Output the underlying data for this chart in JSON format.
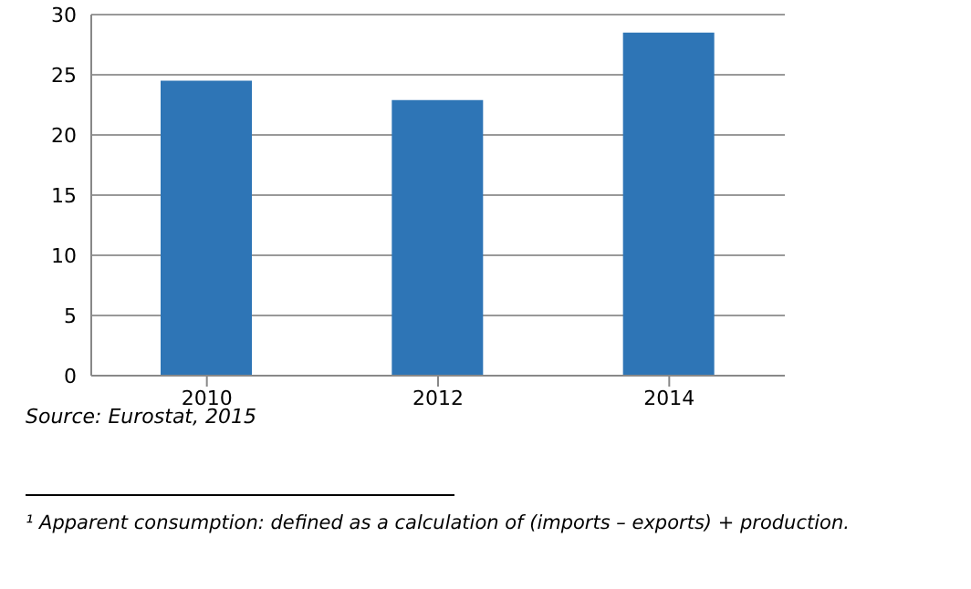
{
  "chart_data": {
    "type": "bar",
    "categories": [
      "2010",
      "2012",
      "2014"
    ],
    "values": [
      24.5,
      22.9,
      28.5
    ],
    "color": "#2e75b6",
    "ylim": [
      0,
      30
    ],
    "yticks": [
      0,
      5,
      10,
      15,
      20,
      25,
      30
    ],
    "grid": "y",
    "annotations": [
      "Source: Eurostat, 2015",
      "¹ Apparent consumption: defined as a calculation of (imports – exports) + production."
    ]
  }
}
